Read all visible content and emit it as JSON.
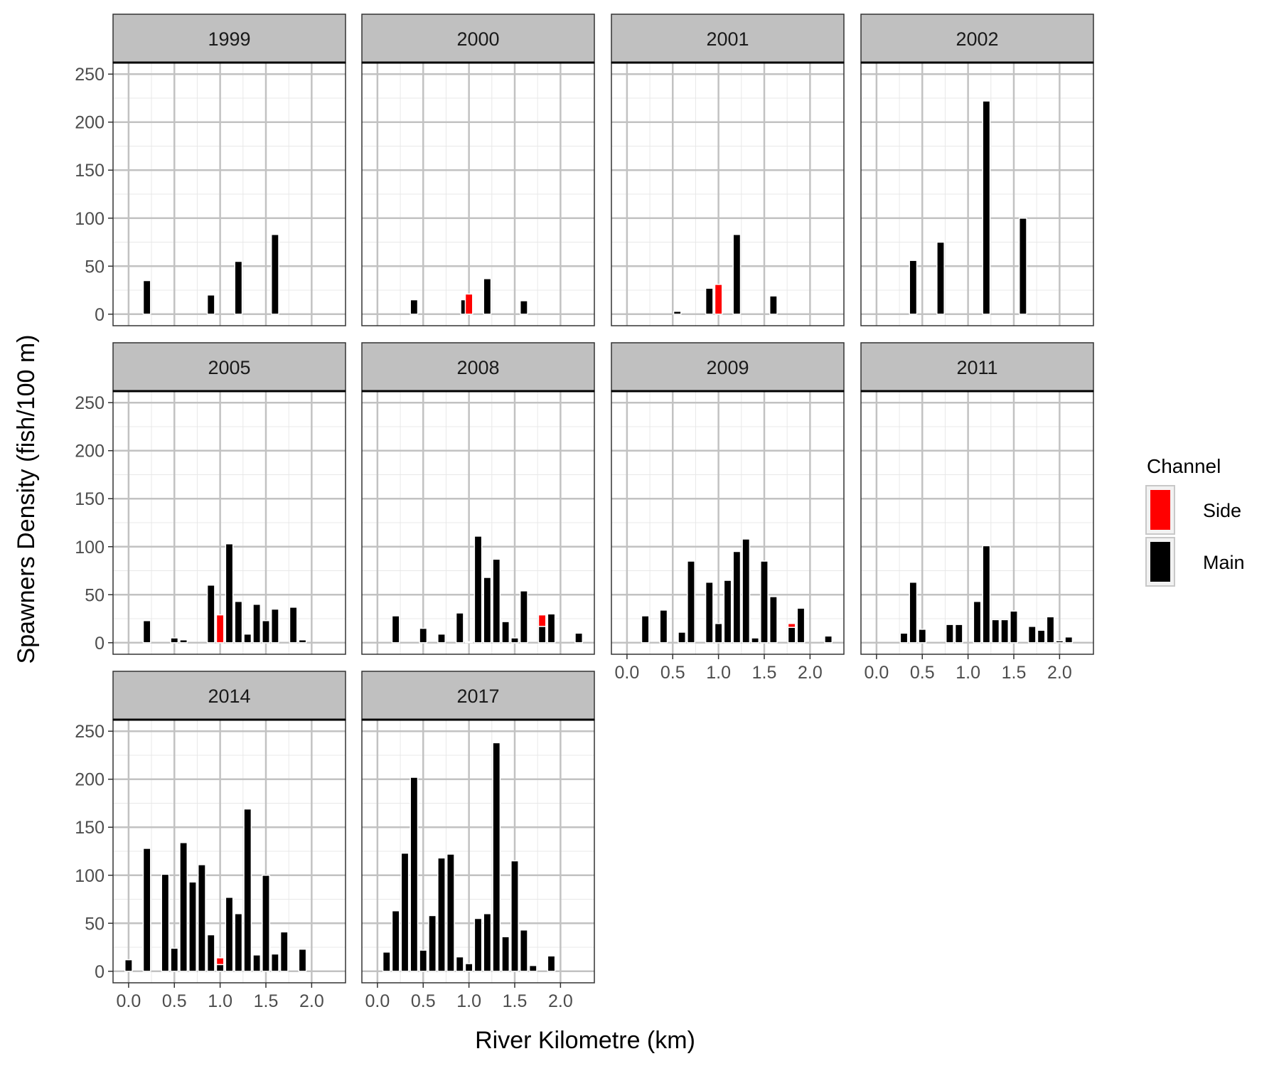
{
  "chart_data": {
    "type": "bar",
    "stacked": true,
    "title": "",
    "xlabel": "River Kilometre (km)",
    "ylabel": "Spawners Density (fish/100 m)",
    "xlim": [
      -0.17,
      2.37
    ],
    "ylim": [
      -12,
      262
    ],
    "x_ticks": [
      "0.0",
      "0.5",
      "1.0",
      "1.5",
      "2.0"
    ],
    "x_tick_values": [
      0,
      0.5,
      1,
      1.5,
      2
    ],
    "y_ticks": [
      "0",
      "50",
      "100",
      "150",
      "200",
      "250"
    ],
    "y_tick_values": [
      0,
      50,
      100,
      150,
      200,
      250
    ],
    "bar_width": 0.08,
    "grid": true,
    "legend": {
      "title": "Channel",
      "position": "right",
      "entries": [
        {
          "name": "Side",
          "color": "#ff0000"
        },
        {
          "name": "Main",
          "color": "#000000"
        }
      ]
    },
    "colors": {
      "Main": "#000000",
      "Side": "#ff0000",
      "strip": "#c0c0c0",
      "grid": "#c2c2c2"
    },
    "panels": [
      {
        "label": "1999",
        "bars": [
          [
            0.2,
            35
          ],
          [
            0.9,
            20
          ],
          [
            1.2,
            55
          ],
          [
            1.6,
            83
          ]
        ]
      },
      {
        "label": "2000",
        "bars": [
          [
            0.4,
            15
          ],
          [
            0.95,
            15
          ],
          [
            1.0,
            0,
            21
          ],
          [
            1.2,
            37
          ],
          [
            1.6,
            14
          ]
        ]
      },
      {
        "label": "2001",
        "bars": [
          [
            0.55,
            3
          ],
          [
            0.9,
            27
          ],
          [
            1.0,
            0,
            31
          ],
          [
            1.2,
            83
          ],
          [
            1.6,
            19
          ]
        ]
      },
      {
        "label": "2002",
        "bars": [
          [
            0.4,
            56
          ],
          [
            0.7,
            75
          ],
          [
            1.2,
            222
          ],
          [
            1.6,
            100
          ]
        ]
      },
      {
        "label": "2005",
        "bars": [
          [
            0.2,
            23
          ],
          [
            0.5,
            5
          ],
          [
            0.6,
            3
          ],
          [
            0.9,
            60
          ],
          [
            1.0,
            0,
            29
          ],
          [
            1.1,
            103
          ],
          [
            1.2,
            43
          ],
          [
            1.3,
            9
          ],
          [
            1.4,
            40
          ],
          [
            1.5,
            23
          ],
          [
            1.6,
            35
          ],
          [
            1.8,
            37
          ],
          [
            1.9,
            3
          ]
        ]
      },
      {
        "label": "2008",
        "bars": [
          [
            0.2,
            28
          ],
          [
            0.5,
            15
          ],
          [
            0.7,
            9
          ],
          [
            0.9,
            31
          ],
          [
            1.0,
            1
          ],
          [
            1.1,
            111
          ],
          [
            1.2,
            68
          ],
          [
            1.3,
            87
          ],
          [
            1.4,
            22
          ],
          [
            1.5,
            5
          ],
          [
            1.6,
            54
          ],
          [
            1.8,
            17,
            12
          ],
          [
            1.9,
            30
          ],
          [
            2.2,
            10
          ]
        ]
      },
      {
        "label": "2009",
        "bars": [
          [
            0.2,
            28
          ],
          [
            0.4,
            34
          ],
          [
            0.6,
            11
          ],
          [
            0.7,
            85
          ],
          [
            0.9,
            63
          ],
          [
            1.0,
            20
          ],
          [
            1.1,
            65
          ],
          [
            1.2,
            95
          ],
          [
            1.3,
            108
          ],
          [
            1.4,
            5
          ],
          [
            1.5,
            85
          ],
          [
            1.6,
            48
          ],
          [
            1.8,
            16,
            4
          ],
          [
            1.9,
            36
          ],
          [
            2.2,
            7
          ]
        ]
      },
      {
        "label": "2011",
        "bars": [
          [
            0.3,
            10
          ],
          [
            0.4,
            63
          ],
          [
            0.5,
            14
          ],
          [
            0.8,
            19
          ],
          [
            0.9,
            19
          ],
          [
            1.1,
            43
          ],
          [
            1.2,
            101
          ],
          [
            1.3,
            24
          ],
          [
            1.4,
            24
          ],
          [
            1.5,
            33
          ],
          [
            1.7,
            17
          ],
          [
            1.8,
            13
          ],
          [
            1.9,
            27
          ],
          [
            2.0,
            2
          ],
          [
            2.1,
            6
          ]
        ]
      },
      {
        "label": "2014",
        "bars": [
          [
            0.0,
            12
          ],
          [
            0.2,
            128
          ],
          [
            0.4,
            101
          ],
          [
            0.5,
            24
          ],
          [
            0.6,
            134
          ],
          [
            0.7,
            93
          ],
          [
            0.8,
            111
          ],
          [
            0.9,
            38
          ],
          [
            1.0,
            7,
            7
          ],
          [
            1.1,
            77
          ],
          [
            1.2,
            60
          ],
          [
            1.3,
            169
          ],
          [
            1.4,
            17
          ],
          [
            1.5,
            100
          ],
          [
            1.6,
            18
          ],
          [
            1.7,
            41
          ],
          [
            1.9,
            23
          ]
        ]
      },
      {
        "label": "2017",
        "bars": [
          [
            0.1,
            20
          ],
          [
            0.2,
            63
          ],
          [
            0.3,
            123
          ],
          [
            0.4,
            202
          ],
          [
            0.5,
            22
          ],
          [
            0.6,
            58
          ],
          [
            0.7,
            118
          ],
          [
            0.8,
            122
          ],
          [
            0.9,
            15
          ],
          [
            1.0,
            8
          ],
          [
            1.1,
            55
          ],
          [
            1.2,
            60
          ],
          [
            1.3,
            238
          ],
          [
            1.4,
            36
          ],
          [
            1.5,
            115
          ],
          [
            1.6,
            43
          ],
          [
            1.7,
            6
          ],
          [
            1.9,
            16
          ]
        ]
      }
    ]
  }
}
